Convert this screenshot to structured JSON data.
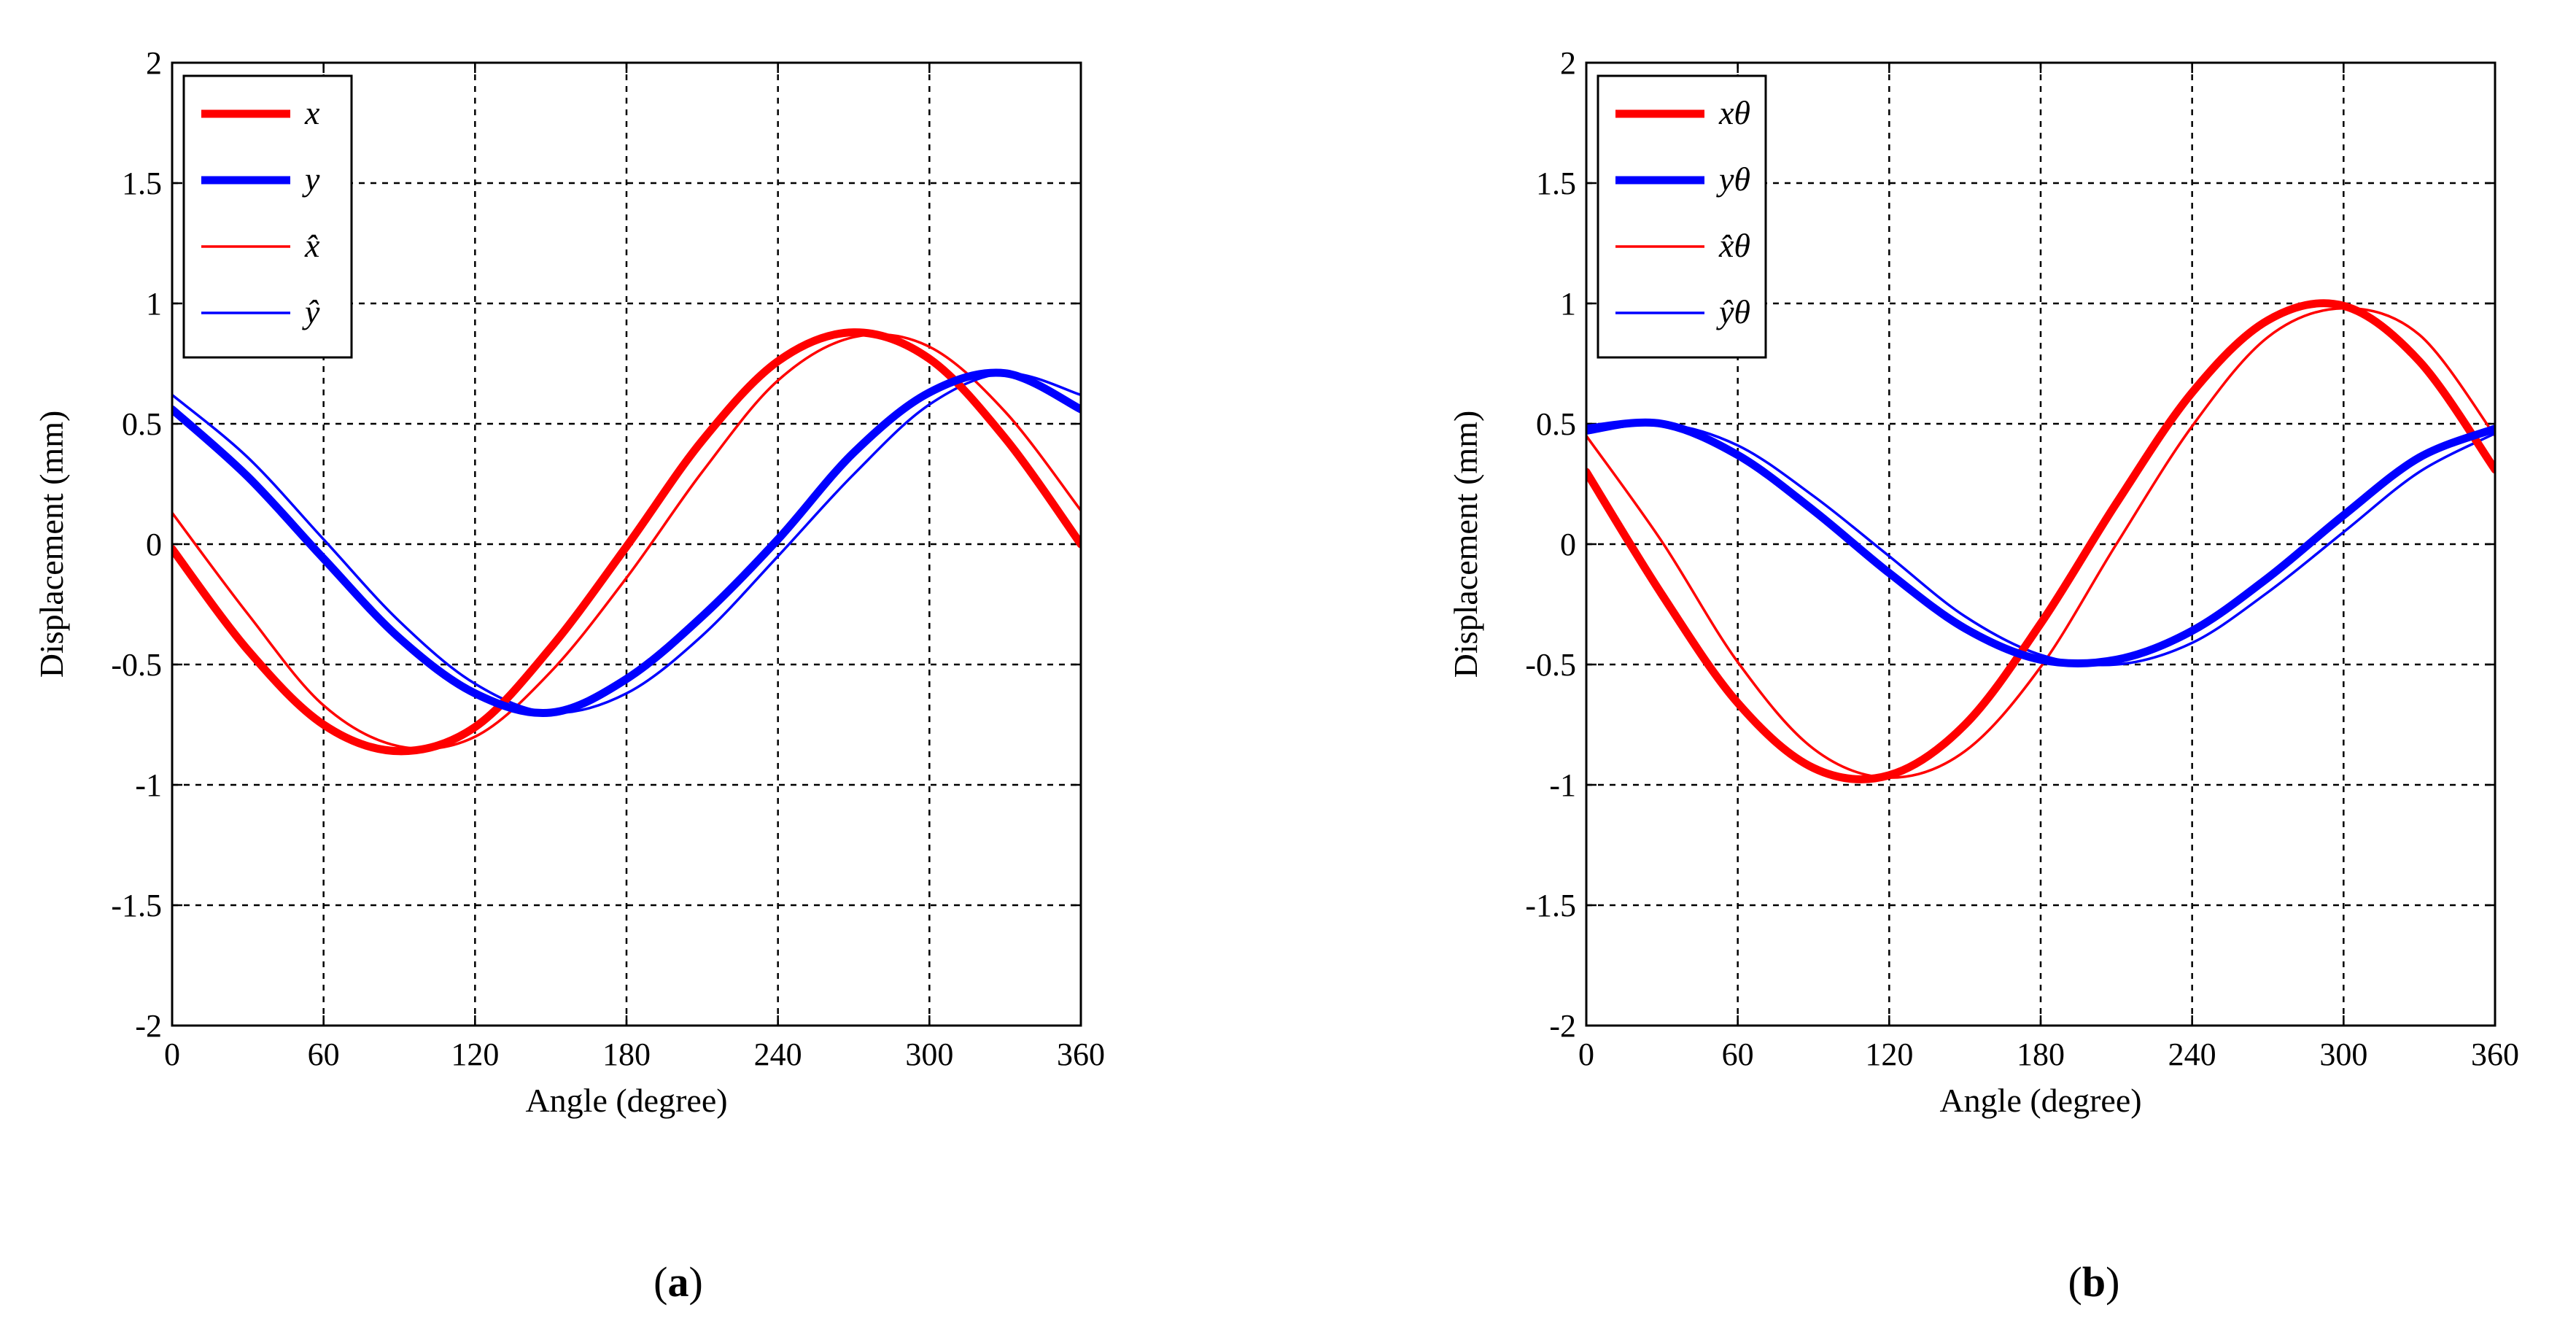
{
  "figure": {
    "captions": [
      "a",
      "b"
    ]
  },
  "chart_data": [
    {
      "type": "line",
      "panel": "a",
      "xlabel": "Angle (degree)",
      "ylabel": "Displacement (mm)",
      "xlim": [
        0,
        360
      ],
      "ylim": [
        -2,
        2
      ],
      "xticks": [
        0,
        60,
        120,
        180,
        240,
        300,
        360
      ],
      "yticks": [
        2,
        1.5,
        1,
        0.5,
        0,
        -0.5,
        -1,
        -1.5,
        -2
      ],
      "ytick_labels": [
        "2",
        "1.5",
        "1",
        "0.5",
        "0",
        "-0.5",
        "-1",
        "-1.5",
        "-2"
      ],
      "grid": true,
      "legend_position": "top-left",
      "series": [
        {
          "name": "x",
          "label": "x",
          "color": "#ff0000",
          "style": "thick",
          "x": [
            0,
            30,
            60,
            90,
            120,
            150,
            180,
            210,
            240,
            270,
            300,
            330,
            360
          ],
          "values": [
            -0.02,
            -0.44,
            -0.75,
            -0.86,
            -0.76,
            -0.43,
            -0.01,
            0.43,
            0.76,
            0.88,
            0.77,
            0.44,
            0.0
          ]
        },
        {
          "name": "y",
          "label": "y",
          "color": "#0000ff",
          "style": "thick",
          "x": [
            0,
            30,
            60,
            90,
            120,
            150,
            180,
            210,
            240,
            270,
            300,
            330,
            360
          ],
          "values": [
            0.56,
            0.28,
            -0.06,
            -0.39,
            -0.62,
            -0.7,
            -0.56,
            -0.3,
            0.02,
            0.38,
            0.63,
            0.71,
            0.56
          ]
        },
        {
          "name": "x-hat",
          "label": "x̂",
          "color": "#ff0000",
          "style": "thin",
          "x": [
            0,
            30,
            60,
            90,
            120,
            150,
            180,
            210,
            240,
            270,
            300,
            330,
            360
          ],
          "values": [
            0.13,
            -0.29,
            -0.67,
            -0.84,
            -0.8,
            -0.53,
            -0.14,
            0.3,
            0.68,
            0.86,
            0.82,
            0.55,
            0.14
          ]
        },
        {
          "name": "y-hat",
          "label": "ŷ",
          "color": "#0000ff",
          "style": "thin",
          "x": [
            0,
            30,
            60,
            90,
            120,
            150,
            180,
            210,
            240,
            270,
            300,
            330,
            360
          ],
          "values": [
            0.62,
            0.36,
            0.02,
            -0.32,
            -0.58,
            -0.7,
            -0.62,
            -0.38,
            -0.05,
            0.29,
            0.58,
            0.71,
            0.62
          ]
        }
      ]
    },
    {
      "type": "line",
      "panel": "b",
      "xlabel": "Angle (degree)",
      "ylabel": "Displacement (mm)",
      "xlim": [
        0,
        360
      ],
      "ylim": [
        -2,
        2
      ],
      "xticks": [
        0,
        60,
        120,
        180,
        240,
        300,
        360
      ],
      "yticks": [
        2,
        1.5,
        1,
        0.5,
        0,
        -0.5,
        -1,
        -1.5,
        -2
      ],
      "ytick_labels": [
        "2",
        "1.5",
        "1",
        "0.5",
        "0",
        "-0.5",
        "-1",
        "-1.5",
        "-2"
      ],
      "grid": true,
      "legend_position": "top-left",
      "series": [
        {
          "name": "x-theta",
          "label": "xθ",
          "color": "#ff0000",
          "style": "thick",
          "x": [
            0,
            30,
            60,
            90,
            120,
            150,
            180,
            210,
            240,
            270,
            300,
            330,
            360
          ],
          "values": [
            0.3,
            -0.21,
            -0.66,
            -0.93,
            -0.96,
            -0.75,
            -0.33,
            0.17,
            0.63,
            0.93,
            0.99,
            0.76,
            0.31
          ]
        },
        {
          "name": "y-theta",
          "label": "yθ",
          "color": "#0000ff",
          "style": "thick",
          "x": [
            0,
            30,
            60,
            90,
            120,
            150,
            180,
            210,
            240,
            270,
            300,
            330,
            360
          ],
          "values": [
            0.48,
            0.5,
            0.37,
            0.14,
            -0.12,
            -0.35,
            -0.48,
            -0.48,
            -0.36,
            -0.14,
            0.12,
            0.36,
            0.48
          ]
        },
        {
          "name": "x-theta-hat",
          "label": "x̂θ",
          "color": "#ff0000",
          "style": "thin",
          "x": [
            0,
            30,
            60,
            90,
            120,
            150,
            180,
            210,
            240,
            270,
            300,
            330,
            360
          ],
          "values": [
            0.45,
            0.01,
            -0.49,
            -0.85,
            -0.97,
            -0.86,
            -0.51,
            0.0,
            0.49,
            0.86,
            0.98,
            0.87,
            0.45
          ]
        },
        {
          "name": "y-theta-hat",
          "label": "ŷθ",
          "color": "#0000ff",
          "style": "thin",
          "x": [
            0,
            30,
            60,
            90,
            120,
            150,
            180,
            210,
            240,
            270,
            300,
            330,
            360
          ],
          "values": [
            0.46,
            0.5,
            0.41,
            0.2,
            -0.05,
            -0.3,
            -0.46,
            -0.5,
            -0.41,
            -0.2,
            0.05,
            0.3,
            0.46
          ]
        }
      ]
    }
  ]
}
